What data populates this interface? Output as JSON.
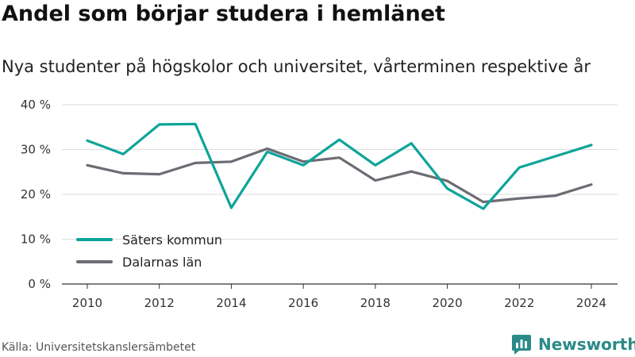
{
  "title": "Andel som börjar studera i hemlänet",
  "subtitle": "Nya studenter på högskolor och universitet, vårterminen respektive år",
  "source": "Källa: Universitetskanslersämbetet",
  "brand": "Newsworthy",
  "colors": {
    "saters": "#0ea49a",
    "dalarna": "#6d6b73",
    "grid": "#dddddd",
    "brand": "#2a8a88"
  },
  "chart_data": {
    "type": "line",
    "x": [
      2010,
      2011,
      2012,
      2013,
      2014,
      2015,
      2016,
      2017,
      2018,
      2019,
      2020,
      2021,
      2022,
      2023,
      2024
    ],
    "xticks": [
      2010,
      2012,
      2014,
      2016,
      2018,
      2020,
      2022,
      2024
    ],
    "yticks": [
      0,
      10,
      20,
      30,
      40
    ],
    "ytick_labels": [
      "0 %",
      "10 %",
      "20 %",
      "30 %",
      "40 %"
    ],
    "ylim": [
      0,
      40
    ],
    "grid": true,
    "legend_position": "lower-left",
    "series": [
      {
        "name": "Säters kommun",
        "color": "#0ea49a",
        "values": [
          32.0,
          29.0,
          35.6,
          35.7,
          17.0,
          29.5,
          26.5,
          32.2,
          26.5,
          31.4,
          21.3,
          16.8,
          26.0,
          28.5,
          31.0
        ]
      },
      {
        "name": "Dalarnas län",
        "color": "#6d6b73",
        "values": [
          26.5,
          24.7,
          24.5,
          27.0,
          27.3,
          30.2,
          27.3,
          28.2,
          23.1,
          25.1,
          23.0,
          18.3,
          19.1,
          19.7,
          22.2
        ]
      }
    ]
  }
}
